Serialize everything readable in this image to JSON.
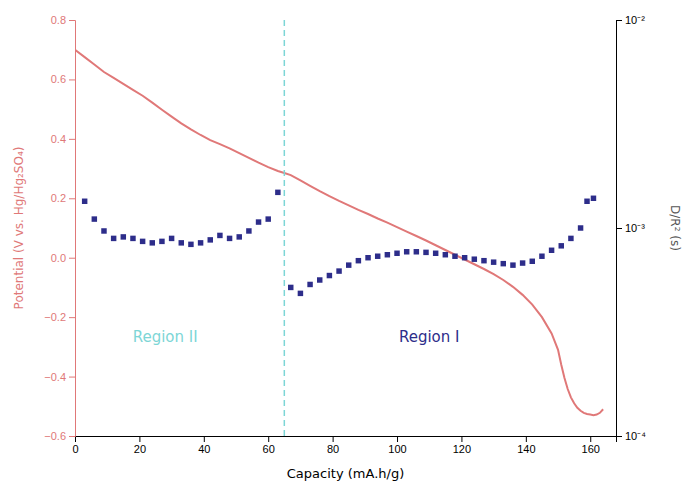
{
  "chart_data": {
    "type": "line",
    "xlabel": "Capacity (mA.h/g)",
    "ylabel": "Potential (V vs. Hg/Hg₂SO₄)",
    "y2label": "D/R² (s)",
    "xlim": [
      0,
      168
    ],
    "xticks": [
      0,
      20,
      40,
      60,
      80,
      100,
      120,
      140,
      160
    ],
    "ylim": [
      -0.6,
      0.8
    ],
    "yticks": [
      {
        "value": -0.6,
        "label": "−0.6"
      },
      {
        "value": -0.4,
        "label": "−0.4"
      },
      {
        "value": -0.2,
        "label": "−0.2"
      },
      {
        "value": 0,
        "label": "0.0"
      },
      0.2,
      0.4,
      0.6,
      0.8
    ],
    "y2lim": [
      0.0001,
      0.01
    ],
    "y2ticks": [
      {
        "value": 0.0001,
        "label": "10⁻⁴"
      },
      {
        "value": 0.001,
        "label": "10⁻³"
      },
      {
        "value": 0.01,
        "label": "10⁻²"
      }
    ],
    "log": "y2",
    "grid": false,
    "series": [
      {
        "type": "line",
        "color": "#e07878",
        "x": [
          0,
          3,
          6,
          9,
          12,
          15,
          18,
          21,
          24,
          27,
          30,
          33,
          36,
          39,
          42,
          45,
          48,
          51,
          54,
          57,
          60,
          63,
          65,
          67,
          70,
          73,
          76,
          79,
          82,
          85,
          88,
          91,
          94,
          97,
          100,
          103,
          106,
          109,
          112,
          115,
          118,
          121,
          124,
          127,
          130,
          133,
          136,
          139,
          142,
          145,
          148,
          150,
          151,
          152,
          153,
          154,
          155,
          156,
          157,
          158,
          159,
          160,
          161,
          162,
          163,
          164
        ],
        "values": [
          0.7,
          0.675,
          0.65,
          0.625,
          0.605,
          0.585,
          0.565,
          0.545,
          0.522,
          0.498,
          0.475,
          0.452,
          0.432,
          0.413,
          0.396,
          0.382,
          0.368,
          0.352,
          0.336,
          0.32,
          0.305,
          0.292,
          0.285,
          0.278,
          0.26,
          0.242,
          0.224,
          0.207,
          0.191,
          0.176,
          0.161,
          0.147,
          0.132,
          0.118,
          0.103,
          0.088,
          0.073,
          0.058,
          0.042,
          0.026,
          0.01,
          -0.006,
          -0.022,
          -0.038,
          -0.055,
          -0.075,
          -0.098,
          -0.125,
          -0.158,
          -0.2,
          -0.255,
          -0.31,
          -0.36,
          -0.405,
          -0.442,
          -0.47,
          -0.49,
          -0.505,
          -0.515,
          -0.522,
          -0.526,
          -0.528,
          -0.53,
          -0.528,
          -0.522,
          -0.51
        ]
      },
      {
        "type": "scatter",
        "color": "#2d2d8a",
        "marker": "square",
        "x": [
          3,
          6,
          9,
          12,
          15,
          18,
          21,
          24,
          27,
          30,
          33,
          36,
          39,
          42,
          45,
          48,
          51,
          54,
          57,
          60,
          63
        ],
        "values": [
          0.19,
          0.13,
          0.09,
          0.065,
          0.07,
          0.065,
          0.055,
          0.05,
          0.055,
          0.065,
          0.05,
          0.045,
          0.05,
          0.06,
          0.075,
          0.065,
          0.07,
          0.09,
          0.12,
          0.13,
          0.22
        ]
      },
      {
        "type": "scatter",
        "color": "#2d2d8a",
        "marker": "square",
        "x": [
          67,
          70,
          73,
          76,
          79,
          82,
          85,
          88,
          91,
          94,
          97,
          100,
          103,
          106,
          109,
          112,
          115,
          118,
          121,
          124,
          127,
          130,
          133,
          136,
          139,
          142,
          145,
          148,
          151,
          154,
          157,
          159,
          161
        ],
        "values": [
          -0.1,
          -0.12,
          -0.09,
          -0.075,
          -0.06,
          -0.045,
          -0.025,
          -0.01,
          0.0,
          0.005,
          0.01,
          0.015,
          0.02,
          0.02,
          0.018,
          0.015,
          0.01,
          0.005,
          0.0,
          -0.005,
          -0.01,
          -0.015,
          -0.02,
          -0.025,
          -0.018,
          -0.012,
          0.005,
          0.025,
          0.04,
          0.065,
          0.1,
          0.19,
          0.2
        ]
      }
    ],
    "annotations": [
      {
        "type": "vline",
        "x": 65,
        "color": "#7dd6d6",
        "line_style": "dashed"
      },
      {
        "type": "text",
        "text": "Region II",
        "x": 28,
        "y": -0.27,
        "color": "#7dd6d6"
      },
      {
        "type": "text",
        "text": "Region I",
        "x": 110,
        "y": -0.27,
        "color": "#2d2d8a"
      }
    ]
  }
}
